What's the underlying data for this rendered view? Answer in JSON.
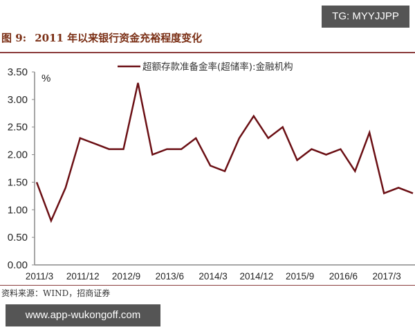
{
  "watermarks": {
    "top": "TG: MYYJJPP",
    "bottom": "www.app-wukongoff.com"
  },
  "figure": {
    "label": "图 9:",
    "title": "2011 年以来银行资金充裕程度变化",
    "source": "资料来源：WIND，招商证券"
  },
  "colors": {
    "line": "#6b0f14",
    "axis": "#888888",
    "title": "#7a2e14"
  },
  "chart_data": {
    "type": "line",
    "title": "2011 年以来银行资金充裕程度变化",
    "xlabel": "",
    "ylabel": "%",
    "ylim": [
      0,
      3.5
    ],
    "yticks": [
      "0.00",
      "0.50",
      "1.00",
      "1.50",
      "2.00",
      "2.50",
      "3.00",
      "3.50"
    ],
    "x_tick_labels": [
      "2011/3",
      "2011/12",
      "2012/9",
      "2013/6",
      "2014/3",
      "2014/12",
      "2015/9",
      "2016/6",
      "2017/3"
    ],
    "grid": false,
    "legend_position": "top",
    "x": [
      "2011/3",
      "2011/6",
      "2011/9",
      "2011/12",
      "2012/3",
      "2012/6",
      "2012/9",
      "2012/12",
      "2013/3",
      "2013/6",
      "2013/9",
      "2013/12",
      "2014/3",
      "2014/6",
      "2014/9",
      "2014/12",
      "2015/3",
      "2015/6",
      "2015/9",
      "2015/12",
      "2016/3",
      "2016/6",
      "2016/9",
      "2016/12",
      "2017/3",
      "2017/6",
      "2017/9"
    ],
    "series": [
      {
        "name": "超额存款准备金率(超储率):金融机构",
        "values": [
          1.5,
          0.8,
          1.4,
          2.3,
          2.2,
          2.1,
          2.1,
          3.3,
          2.0,
          2.1,
          2.1,
          2.3,
          1.8,
          1.7,
          2.3,
          2.7,
          2.3,
          2.5,
          1.9,
          2.1,
          2.0,
          2.1,
          1.7,
          2.4,
          1.3,
          1.4,
          1.3
        ]
      }
    ]
  }
}
